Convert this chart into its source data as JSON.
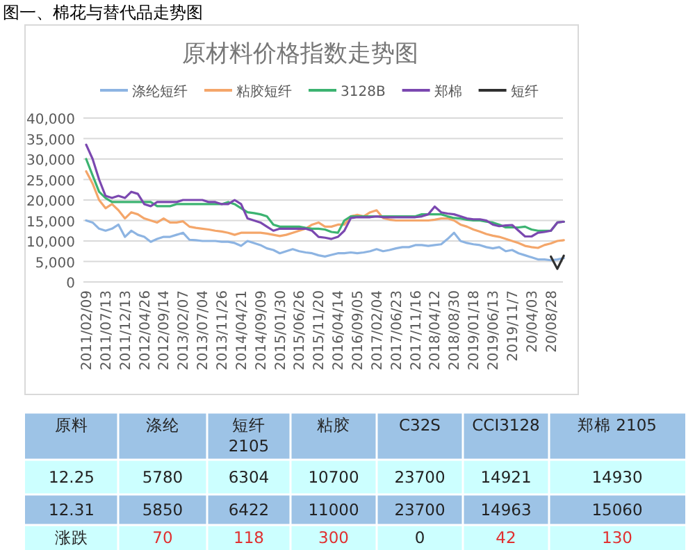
{
  "chart_data": [
    {
      "type": "line",
      "title": "原材料价格指数走势图",
      "annotations": [
        "图一、棉花与替代品走势图"
      ],
      "categories": [
        "2011/02/09",
        null,
        null,
        "2011/07/13",
        null,
        null,
        "2011/12/13",
        null,
        null,
        "2012/04/26",
        null,
        null,
        "2012/09/14",
        null,
        null,
        "2013/02/07",
        null,
        null,
        "2013/07/04",
        null,
        null,
        "2013/11/26",
        null,
        null,
        "2014/04/21",
        null,
        null,
        "2014/09/09",
        null,
        null,
        "2015/01/30",
        null,
        null,
        "2015/06/26",
        null,
        null,
        "2015/11/20",
        null,
        null,
        "2016/04/14",
        null,
        null,
        "2016/09/05",
        null,
        null,
        "2017/02/04",
        null,
        null,
        "2017/06/23",
        null,
        null,
        "2017/11/16",
        null,
        null,
        "2018/04/12",
        null,
        null,
        "2018/08/30",
        null,
        null,
        "2019/01/18",
        null,
        null,
        "2019/06/13",
        null,
        null,
        "2019/11/7",
        null,
        null,
        "20/04/03",
        null,
        null,
        "20/08/28",
        null,
        null
      ],
      "ylim": [
        0,
        40000
      ],
      "yticks": [
        {
          "value": 0,
          "label": "0"
        },
        {
          "value": 5000,
          "label": "5,000"
        },
        {
          "value": 10000,
          "label": "10,000"
        },
        {
          "value": 15000,
          "label": "15,000"
        },
        {
          "value": 20000,
          "label": "20,000"
        },
        {
          "value": 25000,
          "label": "25,000"
        },
        {
          "value": 30000,
          "label": "30,000"
        },
        {
          "value": 35000,
          "label": "35,000"
        },
        {
          "value": 40000,
          "label": "40,000"
        }
      ],
      "grid": "y",
      "legend": "top",
      "marker": "none",
      "line_style": "solid",
      "series": [
        {
          "name": "涤纶短纤",
          "color": "#8db4e2",
          "values": [
            15000,
            14500,
            13000,
            12500,
            13000,
            14000,
            11000,
            12500,
            11500,
            11000,
            9800,
            10500,
            11000,
            11000,
            11500,
            12000,
            10300,
            10200,
            10000,
            10000,
            10000,
            9800,
            9800,
            9500,
            8800,
            10000,
            9500,
            9000,
            8200,
            7800,
            7000,
            7500,
            8000,
            7500,
            7200,
            7000,
            6500,
            6200,
            6600,
            7000,
            7000,
            7200,
            7000,
            7200,
            7500,
            8000,
            7500,
            7800,
            8200,
            8500,
            8500,
            9000,
            9000,
            8800,
            9000,
            9200,
            10500,
            12000,
            10000,
            9500,
            9200,
            9000,
            8500,
            8200,
            8500,
            7500,
            7800,
            7000,
            6500,
            6000,
            5500,
            5500,
            5300,
            5500,
            5800
          ]
        },
        {
          "name": "粘胶短纤",
          "color": "#f4a66a",
          "values": [
            27000,
            24000,
            20000,
            18000,
            19000,
            17500,
            15500,
            17000,
            16500,
            15500,
            15000,
            14500,
            15500,
            14500,
            14500,
            14800,
            13500,
            13200,
            13000,
            12800,
            12500,
            12300,
            12000,
            11500,
            12000,
            12000,
            12000,
            12000,
            11800,
            11500,
            11200,
            11500,
            12000,
            12500,
            13000,
            14000,
            14500,
            13500,
            13500,
            14000,
            14000,
            16000,
            16400,
            16000,
            17000,
            17500,
            15600,
            15200,
            15000,
            15000,
            15000,
            15000,
            15000,
            15000,
            15200,
            15500,
            15500,
            15000,
            14000,
            13500,
            12800,
            12300,
            11700,
            11300,
            11000,
            10500,
            10000,
            9500,
            8800,
            8500,
            8300,
            9000,
            9400,
            10000,
            10200
          ]
        },
        {
          "name": "3128B",
          "color": "#3cb371",
          "values": [
            30000,
            26000,
            22000,
            20500,
            19500,
            19500,
            19500,
            19500,
            19500,
            19500,
            19500,
            18500,
            18500,
            18500,
            19000,
            19000,
            19000,
            19000,
            19000,
            19000,
            19000,
            19000,
            19500,
            19000,
            18000,
            17000,
            16800,
            16500,
            16000,
            14000,
            13500,
            13500,
            13500,
            13500,
            13200,
            13000,
            13000,
            12800,
            12200,
            12000,
            15000,
            16000,
            16000,
            16000,
            16000,
            16000,
            16000,
            16000,
            16000,
            16000,
            16000,
            16000,
            16500,
            16500,
            16500,
            16500,
            16000,
            15600,
            15500,
            15200,
            15000,
            15000,
            14700,
            14500,
            14000,
            13300,
            13300,
            13300,
            13500,
            12800,
            12500,
            12500,
            12500,
            14500,
            14700
          ]
        },
        {
          "name": "郑棉",
          "color": "#7b48b0",
          "values": [
            33500,
            30000,
            25000,
            21000,
            20500,
            21000,
            20500,
            22000,
            21500,
            19000,
            18500,
            19500,
            19500,
            19500,
            19500,
            20000,
            20000,
            20000,
            20000,
            19500,
            19500,
            19000,
            19000,
            20000,
            19000,
            15500,
            15000,
            14500,
            13500,
            12500,
            13000,
            13000,
            13000,
            13000,
            13000,
            12500,
            11000,
            10800,
            10500,
            11000,
            12500,
            15600,
            15800,
            15800,
            15800,
            16000,
            15800,
            15800,
            15800,
            15800,
            15800,
            15800,
            16000,
            16500,
            18400,
            17000,
            16700,
            16500,
            16000,
            15500,
            15300,
            15300,
            15000,
            14000,
            13600,
            13800,
            13900,
            12500,
            11100,
            11100,
            12000,
            12200,
            12500,
            14500,
            14700
          ]
        },
        {
          "name": "短纤",
          "color": "#303030",
          "values": [
            null,
            null,
            null,
            null,
            null,
            null,
            null,
            null,
            null,
            null,
            null,
            null,
            null,
            null,
            null,
            null,
            null,
            null,
            null,
            null,
            null,
            null,
            null,
            null,
            null,
            null,
            null,
            null,
            null,
            null,
            null,
            null,
            null,
            null,
            null,
            null,
            null,
            null,
            null,
            null,
            null,
            null,
            null,
            null,
            null,
            null,
            null,
            null,
            null,
            null,
            null,
            null,
            null,
            null,
            null,
            null,
            null,
            null,
            null,
            null,
            null,
            null,
            null,
            null,
            null,
            null,
            null,
            null,
            null,
            null,
            null,
            null,
            6200,
            3200,
            6400
          ]
        }
      ]
    },
    {
      "type": "other",
      "categories": [
        "原料",
        "涤纶",
        "短纤 2105",
        "粘胶",
        "C32S",
        "CCI3128",
        "郑棉 2105"
      ],
      "y_categories": [
        "12.25",
        "12.31",
        "涨跌"
      ],
      "cell_labels": [
        [
          "5780",
          "6304",
          "10700",
          "23700",
          "14921",
          "14930"
        ],
        [
          "5850",
          "6422",
          "11000",
          "23700",
          "14963",
          "15060"
        ],
        [
          "70",
          "118",
          "300",
          "0",
          "42",
          "130"
        ]
      ]
    }
  ]
}
